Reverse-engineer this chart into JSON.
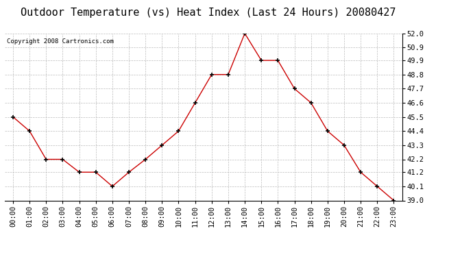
{
  "title": "Outdoor Temperature (vs) Heat Index (Last 24 Hours) 20080427",
  "copyright": "Copyright 2008 Cartronics.com",
  "x_labels": [
    "00:00",
    "01:00",
    "02:00",
    "03:00",
    "04:00",
    "05:00",
    "06:00",
    "07:00",
    "08:00",
    "09:00",
    "10:00",
    "11:00",
    "12:00",
    "13:00",
    "14:00",
    "15:00",
    "16:00",
    "17:00",
    "18:00",
    "19:00",
    "20:00",
    "21:00",
    "22:00",
    "23:00"
  ],
  "y_values": [
    45.5,
    44.4,
    42.2,
    42.2,
    41.2,
    41.2,
    40.1,
    41.2,
    42.2,
    43.3,
    44.4,
    46.6,
    48.8,
    48.8,
    52.0,
    49.9,
    49.9,
    47.7,
    46.6,
    44.4,
    43.3,
    41.2,
    40.1,
    39.0
  ],
  "line_color": "#cc0000",
  "marker_color": "#000000",
  "bg_color": "#ffffff",
  "grid_color": "#bbbbbb",
  "y_min": 39.0,
  "y_max": 52.0,
  "y_ticks": [
    39.0,
    40.1,
    41.2,
    42.2,
    43.3,
    44.4,
    45.5,
    46.6,
    47.7,
    48.8,
    49.9,
    50.9,
    52.0
  ],
  "title_fontsize": 11,
  "copyright_fontsize": 6.5,
  "tick_fontsize": 7.5
}
